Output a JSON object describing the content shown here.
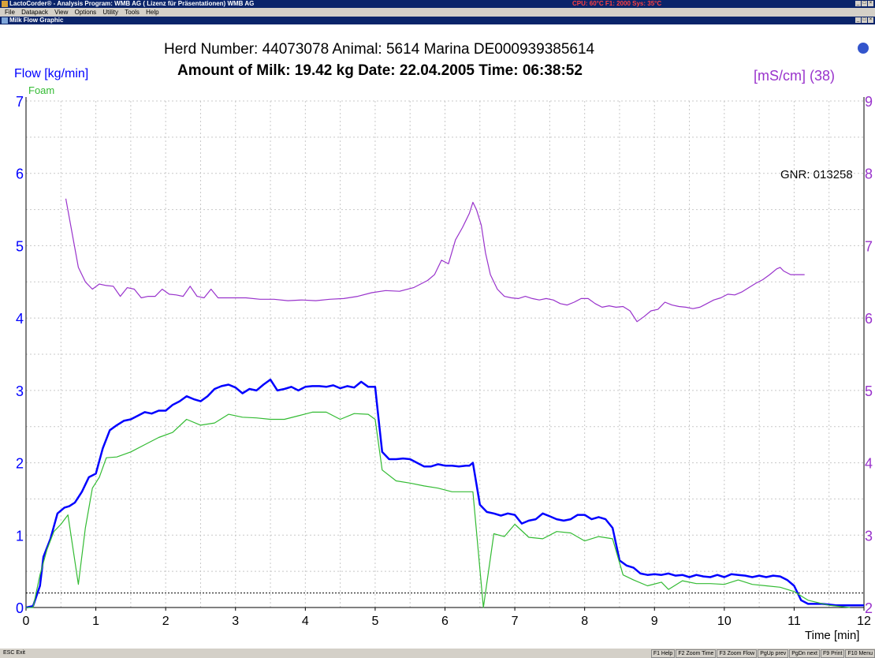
{
  "window": {
    "title": "LactoCorder® - Analysis Program: WMB AG  ( Lizenz für Präsentationen) WMB AG",
    "status_right": "CPU: 60°C  F1: 2000  Sys: 35°C",
    "menu": [
      "File",
      "Datapack",
      "View",
      "Options",
      "Utility",
      "Tools",
      "Help"
    ],
    "subwindow_title": "Milk Flow Graphic"
  },
  "header": {
    "line1": "Herd Number: 44073078    Animal: 5614 Marina   DE000939385614",
    "line2": "Amount of Milk: 19.42 kg    Date: 22.04.2005    Time: 06:38:52",
    "left_axis_label": "Flow [kg/min]",
    "foam_label": "Foam",
    "right_axis_label": "[mS/cm] (38)",
    "gnr": "GNR: 013258",
    "x_axis_label": "Time [min]"
  },
  "colors": {
    "flow": "#0000ff",
    "foam": "#33bb33",
    "conductivity": "#9933cc",
    "grid": "#c8c8c8"
  },
  "chart_data": {
    "type": "line",
    "title": "",
    "xlabel": "Time [min]",
    "ylabel": "Flow [kg/min]",
    "y2label": "[mS/cm] (38)",
    "xlim": [
      0,
      12
    ],
    "ylim": [
      0,
      7
    ],
    "y2lim": [
      2,
      9
    ],
    "x_ticks": [
      0,
      1,
      2,
      3,
      4,
      5,
      6,
      7,
      8,
      9,
      10,
      11,
      12
    ],
    "y_ticks": [
      0,
      1,
      2,
      3,
      4,
      5,
      6,
      7
    ],
    "y2_ticks": [
      2,
      3,
      4,
      5,
      6,
      7,
      8,
      9
    ],
    "threshold": 0.2,
    "grid": true,
    "series": [
      {
        "name": "Flow",
        "axis": "left",
        "color": "#0000ff",
        "points": [
          [
            0,
            0
          ],
          [
            0.1,
            0.02
          ],
          [
            0.2,
            0.3
          ],
          [
            0.25,
            0.7
          ],
          [
            0.35,
            0.95
          ],
          [
            0.45,
            1.3
          ],
          [
            0.55,
            1.38
          ],
          [
            0.62,
            1.4
          ],
          [
            0.7,
            1.45
          ],
          [
            0.8,
            1.6
          ],
          [
            0.9,
            1.8
          ],
          [
            1,
            1.85
          ],
          [
            1.1,
            2.2
          ],
          [
            1.2,
            2.45
          ],
          [
            1.3,
            2.52
          ],
          [
            1.4,
            2.58
          ],
          [
            1.5,
            2.6
          ],
          [
            1.6,
            2.65
          ],
          [
            1.7,
            2.7
          ],
          [
            1.8,
            2.68
          ],
          [
            1.9,
            2.72
          ],
          [
            2,
            2.72
          ],
          [
            2.1,
            2.8
          ],
          [
            2.2,
            2.85
          ],
          [
            2.3,
            2.92
          ],
          [
            2.4,
            2.88
          ],
          [
            2.5,
            2.85
          ],
          [
            2.6,
            2.92
          ],
          [
            2.7,
            3.02
          ],
          [
            2.8,
            3.06
          ],
          [
            2.9,
            3.08
          ],
          [
            3,
            3.04
          ],
          [
            3.1,
            2.96
          ],
          [
            3.2,
            3.02
          ],
          [
            3.3,
            3.0
          ],
          [
            3.4,
            3.08
          ],
          [
            3.5,
            3.15
          ],
          [
            3.6,
            3.0
          ],
          [
            3.7,
            3.02
          ],
          [
            3.8,
            3.05
          ],
          [
            3.9,
            3.0
          ],
          [
            4,
            3.05
          ],
          [
            4.1,
            3.06
          ],
          [
            4.2,
            3.06
          ],
          [
            4.3,
            3.05
          ],
          [
            4.4,
            3.07
          ],
          [
            4.5,
            3.03
          ],
          [
            4.6,
            3.06
          ],
          [
            4.7,
            3.04
          ],
          [
            4.8,
            3.12
          ],
          [
            4.9,
            3.05
          ],
          [
            5,
            3.05
          ],
          [
            5.05,
            2.6
          ],
          [
            5.1,
            2.15
          ],
          [
            5.2,
            2.05
          ],
          [
            5.3,
            2.05
          ],
          [
            5.4,
            2.06
          ],
          [
            5.5,
            2.05
          ],
          [
            5.6,
            2.0
          ],
          [
            5.7,
            1.95
          ],
          [
            5.8,
            1.95
          ],
          [
            5.9,
            1.98
          ],
          [
            6,
            1.96
          ],
          [
            6.1,
            1.96
          ],
          [
            6.2,
            1.95
          ],
          [
            6.3,
            1.96
          ],
          [
            6.35,
            1.96
          ],
          [
            6.4,
            2.0
          ],
          [
            6.5,
            1.42
          ],
          [
            6.6,
            1.32
          ],
          [
            6.7,
            1.3
          ],
          [
            6.8,
            1.27
          ],
          [
            6.9,
            1.3
          ],
          [
            7,
            1.28
          ],
          [
            7.1,
            1.16
          ],
          [
            7.2,
            1.2
          ],
          [
            7.3,
            1.22
          ],
          [
            7.4,
            1.3
          ],
          [
            7.5,
            1.26
          ],
          [
            7.6,
            1.22
          ],
          [
            7.7,
            1.2
          ],
          [
            7.8,
            1.22
          ],
          [
            7.9,
            1.28
          ],
          [
            8,
            1.28
          ],
          [
            8.1,
            1.22
          ],
          [
            8.2,
            1.25
          ],
          [
            8.3,
            1.22
          ],
          [
            8.4,
            1.1
          ],
          [
            8.5,
            0.65
          ],
          [
            8.6,
            0.58
          ],
          [
            8.7,
            0.55
          ],
          [
            8.8,
            0.47
          ],
          [
            8.9,
            0.45
          ],
          [
            9,
            0.46
          ],
          [
            9.1,
            0.45
          ],
          [
            9.2,
            0.47
          ],
          [
            9.3,
            0.44
          ],
          [
            9.4,
            0.45
          ],
          [
            9.5,
            0.42
          ],
          [
            9.6,
            0.45
          ],
          [
            9.7,
            0.43
          ],
          [
            9.8,
            0.42
          ],
          [
            9.9,
            0.45
          ],
          [
            10,
            0.42
          ],
          [
            10.1,
            0.46
          ],
          [
            10.2,
            0.45
          ],
          [
            10.3,
            0.44
          ],
          [
            10.4,
            0.42
          ],
          [
            10.5,
            0.44
          ],
          [
            10.6,
            0.42
          ],
          [
            10.7,
            0.44
          ],
          [
            10.8,
            0.43
          ],
          [
            10.9,
            0.38
          ],
          [
            11,
            0.3
          ],
          [
            11.1,
            0.1
          ],
          [
            11.2,
            0.05
          ],
          [
            11.4,
            0.05
          ],
          [
            11.6,
            0.03
          ],
          [
            12,
            0.03
          ]
        ]
      },
      {
        "name": "Foam",
        "axis": "left",
        "color": "#33bb33",
        "points": [
          [
            0,
            0
          ],
          [
            0.1,
            0
          ],
          [
            0.2,
            0.45
          ],
          [
            0.3,
            0.8
          ],
          [
            0.4,
            1.05
          ],
          [
            0.5,
            1.15
          ],
          [
            0.6,
            1.28
          ],
          [
            0.75,
            0.32
          ],
          [
            0.85,
            1.1
          ],
          [
            0.95,
            1.65
          ],
          [
            1.05,
            1.8
          ],
          [
            1.15,
            2.07
          ],
          [
            1.3,
            2.08
          ],
          [
            1.5,
            2.15
          ],
          [
            1.7,
            2.25
          ],
          [
            1.9,
            2.35
          ],
          [
            2.1,
            2.42
          ],
          [
            2.3,
            2.6
          ],
          [
            2.5,
            2.52
          ],
          [
            2.7,
            2.55
          ],
          [
            2.9,
            2.67
          ],
          [
            3.1,
            2.63
          ],
          [
            3.3,
            2.62
          ],
          [
            3.5,
            2.6
          ],
          [
            3.7,
            2.6
          ],
          [
            3.9,
            2.65
          ],
          [
            4.1,
            2.7
          ],
          [
            4.3,
            2.7
          ],
          [
            4.5,
            2.6
          ],
          [
            4.7,
            2.68
          ],
          [
            4.9,
            2.67
          ],
          [
            5,
            2.6
          ],
          [
            5.1,
            1.9
          ],
          [
            5.3,
            1.75
          ],
          [
            5.5,
            1.72
          ],
          [
            5.7,
            1.68
          ],
          [
            5.9,
            1.65
          ],
          [
            6.1,
            1.6
          ],
          [
            6.3,
            1.6
          ],
          [
            6.4,
            1.6
          ],
          [
            6.55,
            0
          ],
          [
            6.7,
            1.02
          ],
          [
            6.85,
            0.98
          ],
          [
            7,
            1.15
          ],
          [
            7.2,
            0.97
          ],
          [
            7.4,
            0.95
          ],
          [
            7.6,
            1.05
          ],
          [
            7.8,
            1.03
          ],
          [
            8,
            0.92
          ],
          [
            8.2,
            0.98
          ],
          [
            8.4,
            0.95
          ],
          [
            8.55,
            0.45
          ],
          [
            8.7,
            0.38
          ],
          [
            8.9,
            0.3
          ],
          [
            9.1,
            0.35
          ],
          [
            9.2,
            0.25
          ],
          [
            9.4,
            0.37
          ],
          [
            9.6,
            0.33
          ],
          [
            9.8,
            0.33
          ],
          [
            10,
            0.32
          ],
          [
            10.2,
            0.38
          ],
          [
            10.4,
            0.32
          ],
          [
            10.6,
            0.3
          ],
          [
            10.8,
            0.28
          ],
          [
            11,
            0.22
          ],
          [
            11.2,
            0.1
          ],
          [
            11.5,
            0.03
          ],
          [
            11.8,
            0
          ]
        ]
      },
      {
        "name": "Conductivity",
        "axis": "right",
        "color": "#9933cc",
        "points": [
          [
            0.57,
            7.65
          ],
          [
            0.75,
            6.7
          ],
          [
            0.85,
            6.5
          ],
          [
            0.95,
            6.4
          ],
          [
            1.05,
            6.47
          ],
          [
            1.15,
            6.45
          ],
          [
            1.25,
            6.44
          ],
          [
            1.35,
            6.3
          ],
          [
            1.45,
            6.42
          ],
          [
            1.55,
            6.4
          ],
          [
            1.65,
            6.28
          ],
          [
            1.75,
            6.3
          ],
          [
            1.85,
            6.3
          ],
          [
            1.95,
            6.4
          ],
          [
            2.05,
            6.33
          ],
          [
            2.15,
            6.32
          ],
          [
            2.25,
            6.3
          ],
          [
            2.35,
            6.44
          ],
          [
            2.45,
            6.3
          ],
          [
            2.55,
            6.28
          ],
          [
            2.65,
            6.4
          ],
          [
            2.75,
            6.28
          ],
          [
            2.95,
            6.28
          ],
          [
            3.15,
            6.28
          ],
          [
            3.35,
            6.26
          ],
          [
            3.55,
            6.26
          ],
          [
            3.75,
            6.24
          ],
          [
            3.95,
            6.25
          ],
          [
            4.15,
            6.24
          ],
          [
            4.35,
            6.26
          ],
          [
            4.55,
            6.27
          ],
          [
            4.75,
            6.3
          ],
          [
            4.95,
            6.35
          ],
          [
            5.15,
            6.38
          ],
          [
            5.35,
            6.37
          ],
          [
            5.55,
            6.42
          ],
          [
            5.75,
            6.52
          ],
          [
            5.85,
            6.6
          ],
          [
            5.95,
            6.8
          ],
          [
            6.05,
            6.75
          ],
          [
            6.15,
            7.08
          ],
          [
            6.25,
            7.25
          ],
          [
            6.3,
            7.35
          ],
          [
            6.35,
            7.45
          ],
          [
            6.4,
            7.6
          ],
          [
            6.45,
            7.5
          ],
          [
            6.52,
            7.28
          ],
          [
            6.58,
            6.9
          ],
          [
            6.65,
            6.6
          ],
          [
            6.75,
            6.4
          ],
          [
            6.85,
            6.3
          ],
          [
            6.95,
            6.28
          ],
          [
            7.05,
            6.27
          ],
          [
            7.15,
            6.3
          ],
          [
            7.25,
            6.27
          ],
          [
            7.35,
            6.25
          ],
          [
            7.45,
            6.27
          ],
          [
            7.55,
            6.25
          ],
          [
            7.65,
            6.2
          ],
          [
            7.75,
            6.18
          ],
          [
            7.85,
            6.22
          ],
          [
            7.95,
            6.27
          ],
          [
            8.05,
            6.27
          ],
          [
            8.15,
            6.2
          ],
          [
            8.25,
            6.15
          ],
          [
            8.35,
            6.17
          ],
          [
            8.45,
            6.15
          ],
          [
            8.55,
            6.16
          ],
          [
            8.65,
            6.1
          ],
          [
            8.75,
            5.95
          ],
          [
            8.85,
            6.02
          ],
          [
            8.95,
            6.1
          ],
          [
            9.05,
            6.12
          ],
          [
            9.15,
            6.22
          ],
          [
            9.25,
            6.18
          ],
          [
            9.35,
            6.16
          ],
          [
            9.45,
            6.15
          ],
          [
            9.55,
            6.13
          ],
          [
            9.65,
            6.15
          ],
          [
            9.75,
            6.2
          ],
          [
            9.85,
            6.25
          ],
          [
            9.95,
            6.28
          ],
          [
            10.05,
            6.33
          ],
          [
            10.15,
            6.32
          ],
          [
            10.25,
            6.36
          ],
          [
            10.35,
            6.42
          ],
          [
            10.45,
            6.48
          ],
          [
            10.55,
            6.53
          ],
          [
            10.65,
            6.6
          ],
          [
            10.75,
            6.68
          ],
          [
            10.8,
            6.7
          ],
          [
            10.85,
            6.65
          ],
          [
            10.95,
            6.6
          ],
          [
            11.05,
            6.6
          ],
          [
            11.15,
            6.6
          ]
        ]
      }
    ]
  },
  "footer": {
    "esc": "ESC Exit",
    "fkeys": [
      "F1 Help",
      "F2 Zoom Time",
      "F3 Zoom Flow",
      "PgUp prev",
      "PgDn next",
      "F9 Print",
      "F10 Menu"
    ]
  }
}
